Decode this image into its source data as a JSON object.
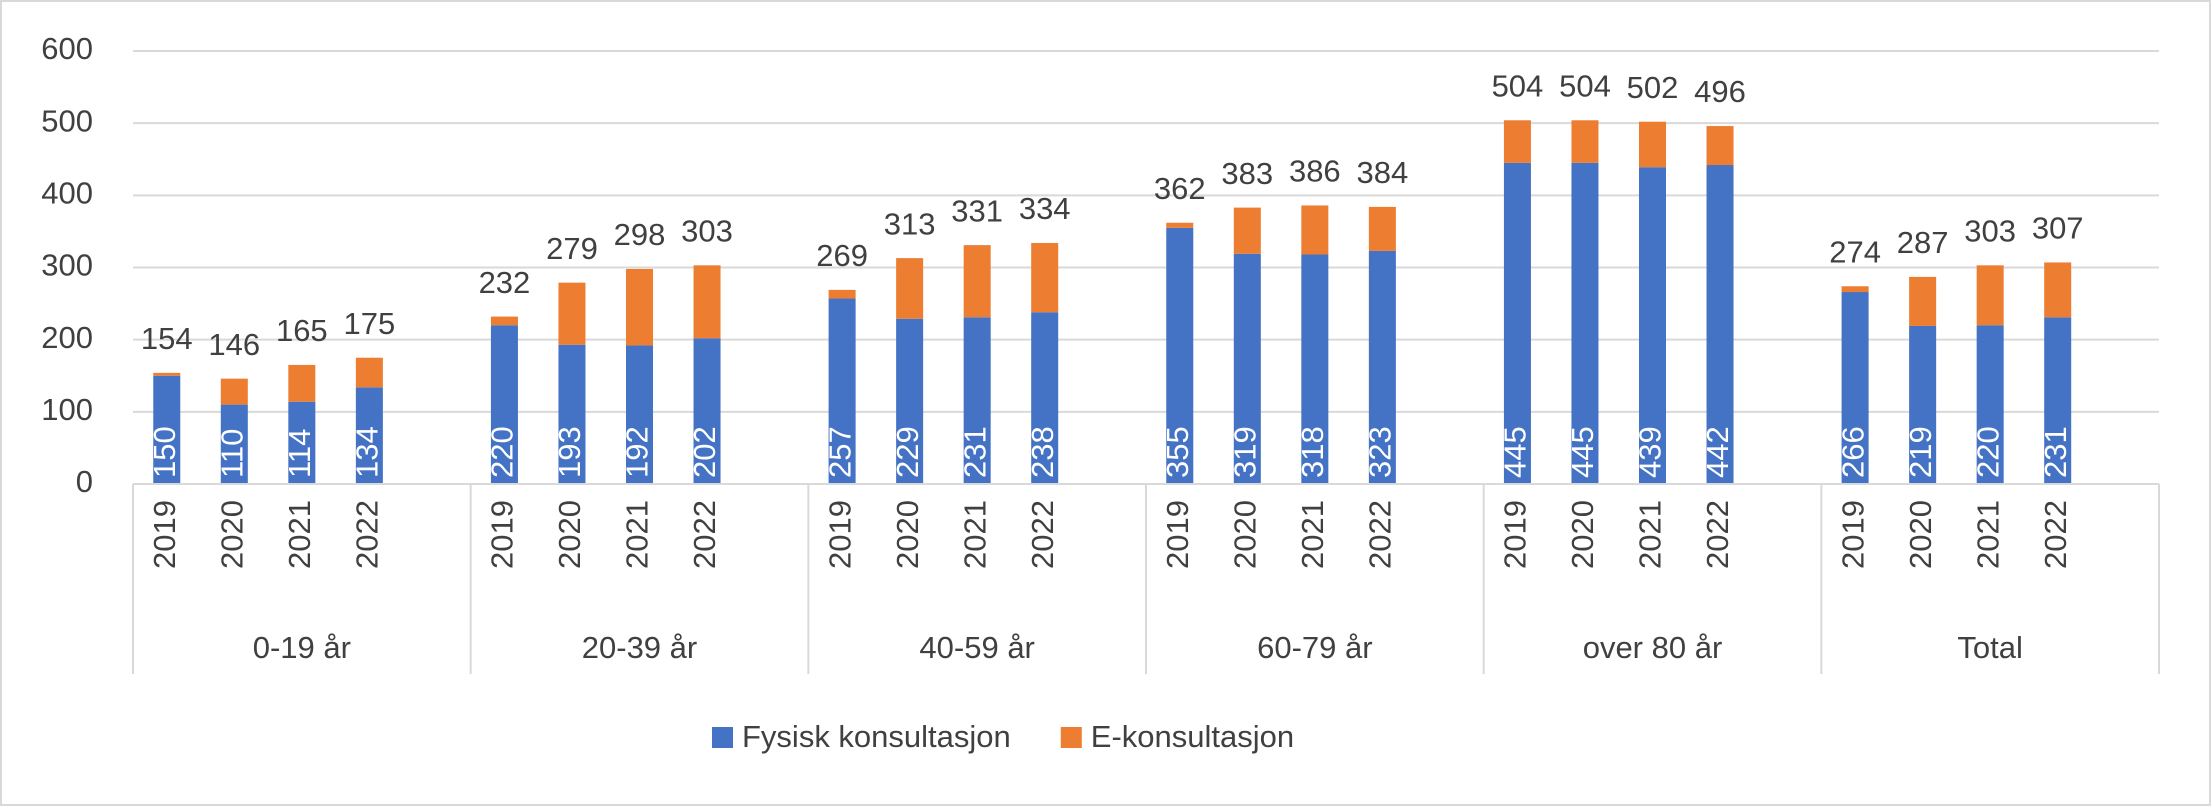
{
  "chart_data": {
    "type": "stacked-bar",
    "categories": [
      "2019",
      "2020",
      "2021",
      "2022",
      "2019",
      "2020",
      "2021",
      "2022",
      "2019",
      "2020",
      "2021",
      "2022",
      "2019",
      "2020",
      "2021",
      "2022",
      "2019",
      "2020",
      "2021",
      "2022",
      "2019",
      "2020",
      "2021",
      "2022"
    ],
    "group_labels": [
      "0-19 år",
      "20-39 år",
      "40-59 år",
      "60-79 år",
      "over 80 år",
      "Total"
    ],
    "series": [
      {
        "name": "Fysisk konsultasjon",
        "color": "#4472c4",
        "values": [
          150,
          110,
          114,
          134,
          220,
          193,
          192,
          202,
          257,
          229,
          231,
          238,
          355,
          319,
          318,
          323,
          445,
          445,
          439,
          442,
          266,
          219,
          220,
          231
        ]
      },
      {
        "name": "E-konsultasjon",
        "color": "#ed7d31",
        "values": [
          4,
          36,
          51,
          41,
          12,
          86,
          106,
          101,
          12,
          84,
          100,
          96,
          7,
          64,
          68,
          61,
          59,
          59,
          63,
          54,
          8,
          68,
          83,
          76
        ]
      }
    ],
    "totals": [
      154,
      146,
      165,
      175,
      232,
      279,
      298,
      303,
      269,
      313,
      331,
      334,
      362,
      383,
      386,
      384,
      504,
      504,
      502,
      496,
      274,
      287,
      303,
      307
    ],
    "ylim": [
      0,
      600
    ],
    "yticks": [
      0,
      100,
      200,
      300,
      400,
      500,
      600
    ],
    "grid": true,
    "legend": "bottom"
  }
}
